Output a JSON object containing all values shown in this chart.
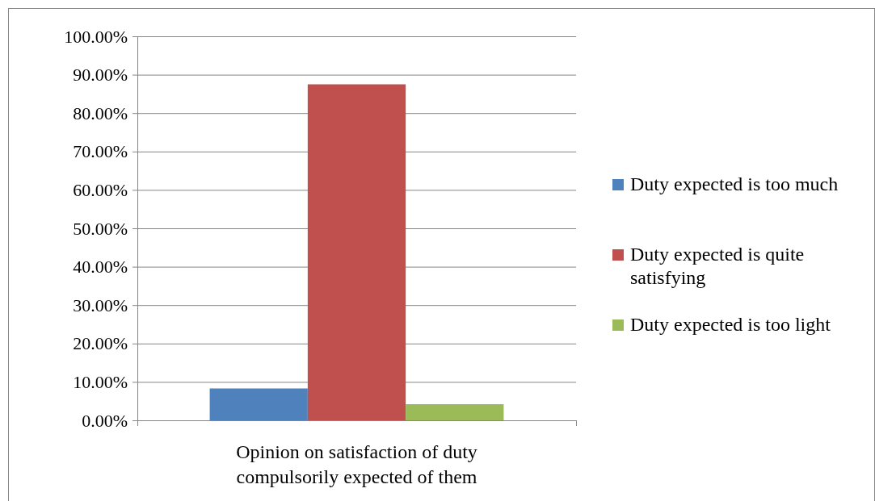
{
  "chart_data": {
    "type": "bar",
    "categories": [
      "Opinion on satisfaction of duty compulsorily expected of them"
    ],
    "series": [
      {
        "name": "Duty expected is too much",
        "color": "#4f81bd",
        "values": [
          8.3
        ]
      },
      {
        "name": "Duty expected is quite satisfying",
        "color": "#c0504d",
        "values": [
          87.5
        ]
      },
      {
        "name": "Duty expected is too light",
        "color": "#9bbb59",
        "values": [
          4.2
        ]
      }
    ],
    "ylim": [
      0,
      100
    ],
    "yticks": [
      {
        "value": 0,
        "label": "0.00%"
      },
      {
        "value": 10,
        "label": "10.00%"
      },
      {
        "value": 20,
        "label": "20.00%"
      },
      {
        "value": 30,
        "label": "30.00%"
      },
      {
        "value": 40,
        "label": "40.00%"
      },
      {
        "value": 50,
        "label": "50.00%"
      },
      {
        "value": 60,
        "label": "60.00%"
      },
      {
        "value": 70,
        "label": "70.00%"
      },
      {
        "value": 80,
        "label": "80.00%"
      },
      {
        "value": 90,
        "label": "90.00%"
      },
      {
        "value": 100,
        "label": "100.00%"
      }
    ],
    "grid": "y",
    "legend": "right"
  }
}
